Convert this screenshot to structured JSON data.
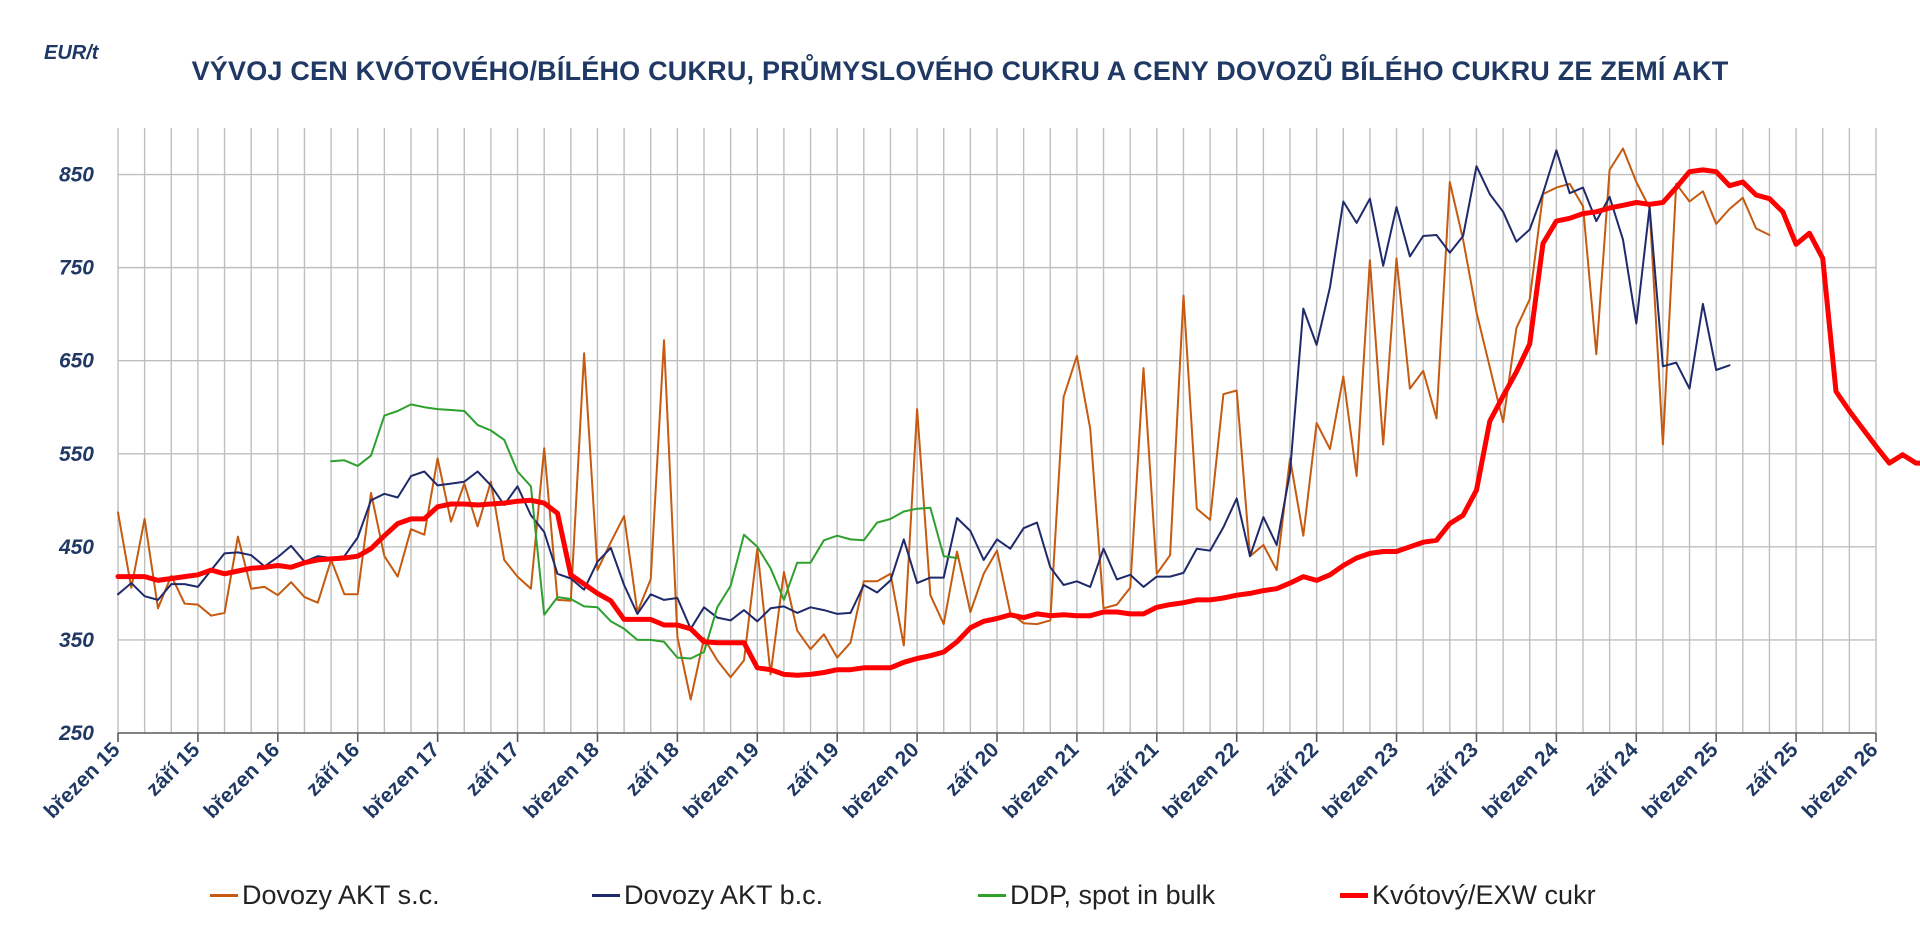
{
  "chart_data": {
    "type": "line",
    "unit": "EUR/t",
    "title": "VÝVOJ CEN KVÓTOVÉHO/BÍLÉHO CUKRU, PRŮMYSLOVÉHO CUKRU A CENY DOVOZŮ BÍLÉHO CUKRU ZE ZEMÍ AKT",
    "xlabel": "",
    "ylabel": "",
    "ylim": [
      250,
      900
    ],
    "yticks": [
      250,
      350,
      450,
      550,
      650,
      750,
      850
    ],
    "xlim": [
      "2015-03",
      "2026-03"
    ],
    "x_tick_labels": [
      "březen 15",
      "září 15",
      "březen 16",
      "září 16",
      "březen 17",
      "září 17",
      "březen 18",
      "září 18",
      "březen 19",
      "září 19",
      "březen 20",
      "září 20",
      "březen 21",
      "září 21",
      "březen 22",
      "září 22",
      "březen 23",
      "září 23",
      "březen 24",
      "září 24",
      "březen 25",
      "září 25",
      "březen 26"
    ],
    "grid": true,
    "legend_position": "bottom",
    "series": [
      {
        "name": "Dovozy AKT s.c.",
        "color": "#C55A11",
        "width": 2,
        "start": "2015-03",
        "values": [
          487,
          406,
          480,
          384,
          419,
          389,
          388,
          376,
          379,
          461,
          405,
          407,
          398,
          412,
          396,
          390,
          436,
          399,
          399,
          508,
          440,
          418,
          469,
          463,
          545,
          477,
          518,
          472,
          520,
          436,
          418,
          405,
          556,
          393,
          392,
          658,
          425,
          455,
          483,
          380,
          415,
          672,
          353,
          286,
          352,
          328,
          310,
          328,
          448,
          313,
          423,
          360,
          340,
          356,
          331,
          347,
          413,
          413,
          421,
          344,
          598,
          398,
          367,
          445,
          380,
          421,
          446,
          379,
          368,
          367,
          371,
          611,
          655,
          577,
          384,
          388,
          406,
          642,
          421,
          441,
          720,
          491,
          479,
          614,
          618,
          440,
          452,
          425,
          545,
          462,
          583,
          555,
          633,
          526,
          758,
          560,
          760,
          620,
          639,
          588,
          842,
          780,
          702,
          643,
          584,
          685,
          716,
          829,
          836,
          840,
          816,
          657,
          855,
          878,
          842,
          814,
          560,
          840,
          821,
          832,
          797,
          813,
          825,
          792,
          785
        ]
      },
      {
        "name": "Dovozy AKT b.c.",
        "color": "#1F2A6B",
        "width": 2,
        "start": "2015-03",
        "values": [
          399,
          411,
          397,
          393,
          410,
          410,
          407,
          425,
          443,
          444,
          441,
          429,
          439,
          451,
          434,
          440,
          438,
          440,
          460,
          500,
          507,
          503,
          526,
          531,
          516,
          518,
          520,
          531,
          516,
          495,
          515,
          484,
          466,
          421,
          416,
          404,
          434,
          449,
          409,
          378,
          399,
          393,
          395,
          362,
          385,
          374,
          371,
          382,
          370,
          384,
          386,
          379,
          385,
          382,
          378,
          379,
          409,
          401,
          414,
          458,
          411,
          417,
          417,
          481,
          467,
          436,
          458,
          448,
          470,
          476,
          428,
          409,
          413,
          407,
          448,
          415,
          420,
          407,
          418,
          418,
          422,
          448,
          446,
          471,
          502,
          440,
          482,
          452,
          530,
          706,
          667,
          729,
          821,
          798,
          824,
          752,
          815,
          762,
          784,
          785,
          766,
          784,
          859,
          829,
          810,
          778,
          791,
          830,
          876,
          830,
          836,
          800,
          826,
          780,
          690,
          815,
          644,
          648,
          620,
          711,
          640,
          645
        ]
      },
      {
        "name": "DDP, spot in bulk",
        "color": "#2EA02E",
        "width": 2,
        "start": "2016-07",
        "values": [
          542,
          543,
          537,
          548,
          591,
          596,
          603,
          600,
          598,
          597,
          596,
          581,
          575,
          565,
          531,
          515,
          377,
          396,
          394,
          386,
          385,
          370,
          362,
          350,
          350,
          348,
          331,
          330,
          337,
          385,
          408,
          463,
          450,
          427,
          393,
          433,
          433,
          457,
          462,
          458,
          457,
          476,
          480,
          488,
          491,
          492,
          440,
          438
        ]
      },
      {
        "name": "Kvótový/EXW cukr",
        "color": "#FF0000",
        "width": 5,
        "start": "2015-03",
        "values": [
          418,
          418,
          418,
          414,
          416,
          418,
          420,
          425,
          421,
          424,
          427,
          428,
          430,
          428,
          433,
          436,
          437,
          438,
          440,
          448,
          462,
          475,
          480,
          480,
          493,
          496,
          496,
          495,
          496,
          497,
          499,
          500,
          497,
          486,
          420,
          410,
          400,
          392,
          372,
          372,
          372,
          366,
          366,
          362,
          348,
          347,
          347,
          347,
          320,
          318,
          313,
          312,
          313,
          315,
          318,
          318,
          320,
          320,
          320,
          326,
          330,
          333,
          337,
          348,
          363,
          370,
          373,
          377,
          374,
          378,
          376,
          377,
          376,
          376,
          380,
          380,
          378,
          378,
          385,
          388,
          390,
          393,
          393,
          395,
          398,
          400,
          403,
          405,
          411,
          418,
          414,
          420,
          430,
          438,
          443,
          445,
          445,
          450,
          455,
          457,
          475,
          484,
          511,
          585,
          612,
          638,
          668,
          776,
          800,
          803,
          808,
          810,
          814,
          817,
          820,
          818,
          820,
          836,
          853,
          855,
          853,
          838,
          842,
          828,
          824,
          810,
          775,
          787,
          760,
          617,
          596,
          577,
          558,
          540,
          549,
          540,
          540
        ]
      }
    ]
  }
}
